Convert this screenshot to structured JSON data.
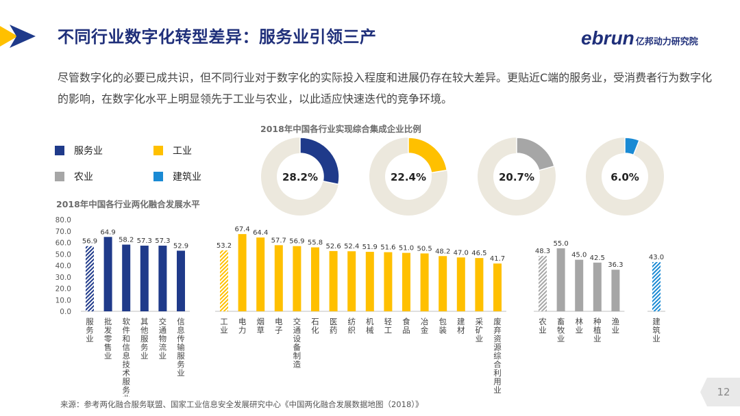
{
  "title": "不同行业数字化转型差异：服务业引领三产",
  "brand": {
    "en": "ebrun",
    "cn": "亿邦动力研究院"
  },
  "intro": "尽管数字化的必要已成共识，但不同行业对于数字化的实际投入程度和进展仍存在较大差异。更贴近C端的服务业，受消费者行为数字化的影响，在数字化水平上明显领先于工业与农业，以此适应快速迭代的竞争环境。",
  "legend": [
    {
      "label": "服务业",
      "color": "#1f3a8a"
    },
    {
      "label": "工业",
      "color": "#ffc000"
    },
    {
      "label": "农业",
      "color": "#a6a6a6"
    },
    {
      "label": "建筑业",
      "color": "#1a8ad4"
    }
  ],
  "source": "来源：参考两化融合服务联盟、国家工业信息安全发展研究中心《中国两化融合发展数据地图（2018）》",
  "page_number": "12",
  "chart_data": [
    {
      "type": "pie",
      "title": "2018年中国各行业实现综合集成企业比例",
      "slices": [
        {
          "name": "服务业",
          "value": 28.2,
          "label": "28.2%",
          "color": "#1f3a8a"
        },
        {
          "name": "工业",
          "value": 22.4,
          "label": "22.4%",
          "color": "#ffc000"
        },
        {
          "name": "农业",
          "value": 20.7,
          "label": "20.7%",
          "color": "#a6a6a6"
        },
        {
          "name": "建筑业",
          "value": 6.0,
          "label": "6.0%",
          "color": "#1a8ad4"
        }
      ],
      "ring_color": "#ece8dd"
    },
    {
      "type": "bar",
      "title": "2018年中国各行业两化融合发展水平",
      "ylim": [
        0,
        80
      ],
      "yticks": [
        "0.0",
        "10.0",
        "20.0",
        "30.0",
        "40.0",
        "50.0",
        "60.0",
        "70.0",
        "80.0"
      ],
      "groups": [
        {
          "name": "服务业",
          "color": "#1f3a8a",
          "bars": [
            {
              "category": "服务业",
              "value": 56.9,
              "label": "56.9",
              "hatched": true
            },
            {
              "category": "批发零售业",
              "value": 64.9,
              "label": "64.9"
            },
            {
              "category": "软件和信息技术服务业",
              "value": 58.2,
              "label": "58.2"
            },
            {
              "category": "其他服务业",
              "value": 57.3,
              "label": "57.3"
            },
            {
              "category": "交通物流业",
              "value": 57.3,
              "label": "57.3"
            },
            {
              "category": "信息传输服务业",
              "value": 52.9,
              "label": "52.9"
            }
          ]
        },
        {
          "name": "工业",
          "color": "#ffc000",
          "bars": [
            {
              "category": "工业",
              "value": 53.2,
              "label": "53.2",
              "hatched": true
            },
            {
              "category": "电力",
              "value": 67.4,
              "label": "67.4"
            },
            {
              "category": "烟草",
              "value": 64.4,
              "label": "64.4"
            },
            {
              "category": "电子",
              "value": 57.7,
              "label": "57.7"
            },
            {
              "category": "交通设备制造",
              "value": 56.9,
              "label": "56.9"
            },
            {
              "category": "石化",
              "value": 55.8,
              "label": "55.8"
            },
            {
              "category": "医药",
              "value": 52.6,
              "label": "52.6"
            },
            {
              "category": "纺织",
              "value": 52.4,
              "label": "52.4"
            },
            {
              "category": "机械",
              "value": 51.9,
              "label": "51.9"
            },
            {
              "category": "轻工",
              "value": 51.6,
              "label": "51.6"
            },
            {
              "category": "食品",
              "value": 51.0,
              "label": "51.0"
            },
            {
              "category": "冶金",
              "value": 50.5,
              "label": "50.5"
            },
            {
              "category": "包装",
              "value": 48.2,
              "label": "48.2"
            },
            {
              "category": "建材",
              "value": 47.0,
              "label": "47.0"
            },
            {
              "category": "采矿业",
              "value": 46.5,
              "label": "46.5"
            },
            {
              "category": "废弃资源综合利用业",
              "value": 41.7,
              "label": "41.7"
            }
          ]
        },
        {
          "name": "农业",
          "color": "#a6a6a6",
          "bars": [
            {
              "category": "农业",
              "value": 48.3,
              "label": "48.3",
              "hatched": true
            },
            {
              "category": "畜牧业",
              "value": 55.0,
              "label": "55.0"
            },
            {
              "category": "林业",
              "value": 45.0,
              "label": "45.0"
            },
            {
              "category": "种植业",
              "value": 42.5,
              "label": "42.5"
            },
            {
              "category": "渔业",
              "value": 36.3,
              "label": "36.3"
            }
          ]
        },
        {
          "name": "建筑业",
          "color": "#1a8ad4",
          "bars": [
            {
              "category": "建筑业",
              "value": 43.0,
              "label": "43.0",
              "hatched": true
            }
          ]
        }
      ]
    }
  ]
}
